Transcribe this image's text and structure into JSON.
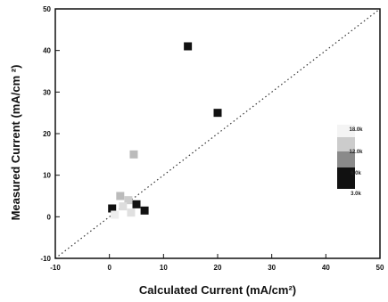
{
  "chart_data": {
    "type": "scatter",
    "title": "",
    "xlabel": "Calculated Current (mA/cm²)",
    "ylabel": "Measured Current (mA/cm ²)",
    "xlim": [
      -10,
      50
    ],
    "ylim": [
      -10,
      50
    ],
    "x_ticks": [
      "-10",
      "0",
      "10",
      "20",
      "30",
      "40",
      "50"
    ],
    "y_ticks": [
      "-10",
      "0",
      "10",
      "20",
      "30",
      "40",
      "50"
    ],
    "grid": false,
    "reference_line": {
      "style": "dotted",
      "from": [
        -10,
        -10
      ],
      "to": [
        50,
        50
      ]
    },
    "legend": {
      "placement": "right",
      "entries": [
        {
          "label": "18.0k",
          "color": "#f4f4f4"
        },
        {
          "label": "12.0k",
          "color": "#cccccc"
        },
        {
          "label": "6.0k",
          "color": "#8a8a8a"
        },
        {
          "label": "3.0k",
          "color": "#111111"
        }
      ]
    },
    "points": [
      {
        "x": 14.5,
        "y": 41,
        "color": "#111111"
      },
      {
        "x": 20,
        "y": 25,
        "color": "#111111"
      },
      {
        "x": 4.5,
        "y": 15,
        "color": "#bbbbbb"
      },
      {
        "x": 2,
        "y": 5,
        "color": "#bbbbbb"
      },
      {
        "x": 3.5,
        "y": 4,
        "color": "#cccccc"
      },
      {
        "x": 2.5,
        "y": 2.5,
        "color": "#dddddd"
      },
      {
        "x": 0.5,
        "y": 2,
        "color": "#111111"
      },
      {
        "x": 5,
        "y": 3,
        "color": "#111111"
      },
      {
        "x": 6.5,
        "y": 1.5,
        "color": "#111111"
      },
      {
        "x": 4,
        "y": 1,
        "color": "#e0e0e0"
      },
      {
        "x": 1,
        "y": 0.5,
        "color": "#eeeeee"
      }
    ]
  }
}
